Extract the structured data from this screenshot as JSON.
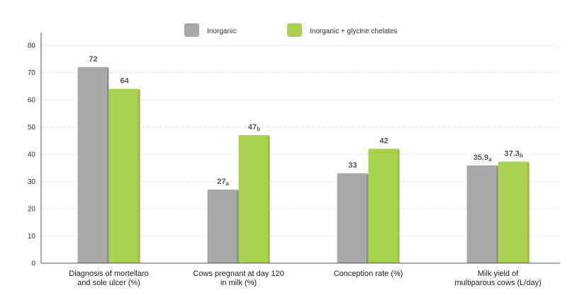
{
  "chart_data": {
    "type": "bar",
    "categories": [
      [
        "Diagnosis of mortellaro",
        "and sole ulcer (%)"
      ],
      [
        "Cows pregnant at day 120",
        "in milk (%)"
      ],
      [
        "Conception rate (%)"
      ],
      [
        "Milk yield of",
        "multiparous cows (L/day)"
      ]
    ],
    "series": [
      {
        "name": "Inorganic",
        "color": "#a8a8a8",
        "values": [
          72,
          27,
          33,
          35.9
        ],
        "labels": [
          "72",
          "27",
          "33",
          "35.9"
        ],
        "sublabels": [
          "",
          "a",
          "",
          "a"
        ]
      },
      {
        "name": "Inorganic + glycine chelates",
        "color": "#a9d04f",
        "values": [
          64,
          47,
          42,
          37.3
        ],
        "labels": [
          "64",
          "47",
          "42",
          "37.3"
        ],
        "sublabels": [
          "",
          "b",
          "",
          "b"
        ]
      }
    ],
    "ylim": [
      0,
      80
    ],
    "yticks": [
      0,
      10,
      20,
      30,
      40,
      50,
      60,
      70,
      80
    ],
    "grid": true,
    "legend": "top-center"
  }
}
